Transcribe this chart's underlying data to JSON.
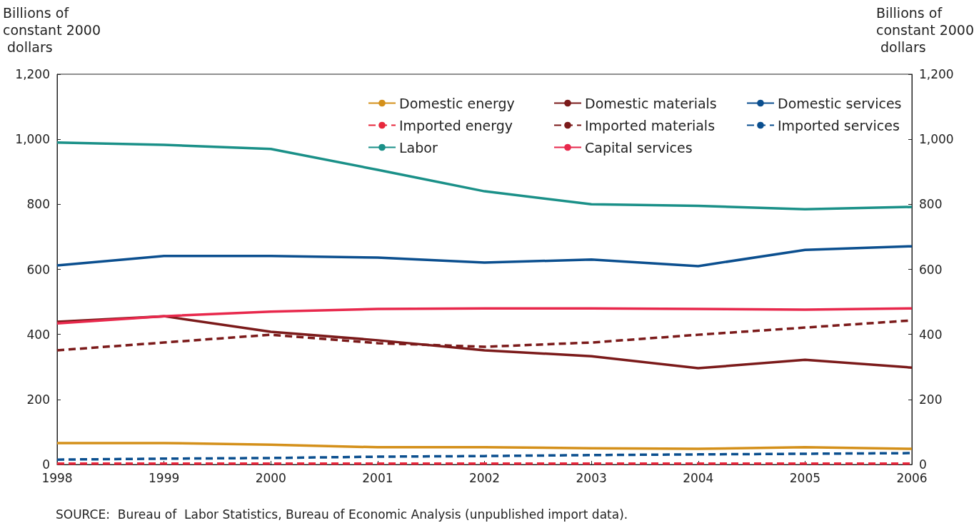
{
  "chart_data": {
    "type": "line",
    "ylabel": "Billions of constant 2000 dollars",
    "y2label": "Billions of constant 2000 dollars",
    "categories": [
      "1998",
      "1999",
      "2000",
      "2001",
      "2002",
      "2003",
      "2004",
      "2005",
      "2006"
    ],
    "series": [
      {
        "name": "Domestic energy",
        "color": "#d4901a",
        "line_style": "solid",
        "values": [
          66,
          66,
          61,
          53,
          53,
          50,
          48,
          53,
          48
        ]
      },
      {
        "name": "Domestic materials",
        "color": "#7b1a1a",
        "line_style": "solid",
        "values": [
          439,
          456,
          408,
          382,
          351,
          333,
          296,
          322,
          298
        ]
      },
      {
        "name": "Domestic services",
        "color": "#0b4f8f",
        "line_style": "solid",
        "values": [
          612,
          641,
          641,
          636,
          621,
          630,
          610,
          660,
          671
        ]
      },
      {
        "name": "Imported energy",
        "color": "#e8283c",
        "line_style": "dashed",
        "values": [
          3,
          3,
          3,
          3,
          3,
          3,
          3,
          3,
          3
        ]
      },
      {
        "name": "Imported materials",
        "color": "#7b1a1a",
        "line_style": "dashed",
        "values": [
          351,
          375,
          399,
          373,
          362,
          375,
          399,
          421,
          443
        ]
      },
      {
        "name": "Imported services",
        "color": "#0b4f8f",
        "line_style": "dashed",
        "values": [
          15,
          18,
          20,
          24,
          26,
          29,
          31,
          33,
          35
        ]
      },
      {
        "name": "Labor",
        "color": "#1a9088",
        "line_style": "solid",
        "values": [
          990,
          983,
          970,
          906,
          840,
          800,
          795,
          785,
          792
        ]
      },
      {
        "name": "Capital services",
        "color": "#e8284c",
        "line_style": "solid",
        "values": [
          434,
          456,
          470,
          478,
          480,
          480,
          478,
          476,
          480
        ]
      }
    ],
    "ylim": [
      0,
      1200
    ],
    "yticks": [
      0,
      200,
      400,
      600,
      800,
      {
        "value": 1000,
        "label": "1,000"
      },
      {
        "value": 1200,
        "label": "1,200"
      }
    ],
    "y2lim": [
      0,
      1200
    ],
    "y2ticks": [
      0,
      200,
      400,
      600,
      800,
      {
        "value": 1000,
        "label": "1,000"
      },
      {
        "value": 1200,
        "label": "1,200"
      }
    ],
    "grid": false,
    "legend": "top right",
    "marker": "none",
    "annotations": [
      "SOURCE:  Bureau of  Labor Statistics, Bureau of Economic Analysis (unpublished import data)."
    ]
  }
}
